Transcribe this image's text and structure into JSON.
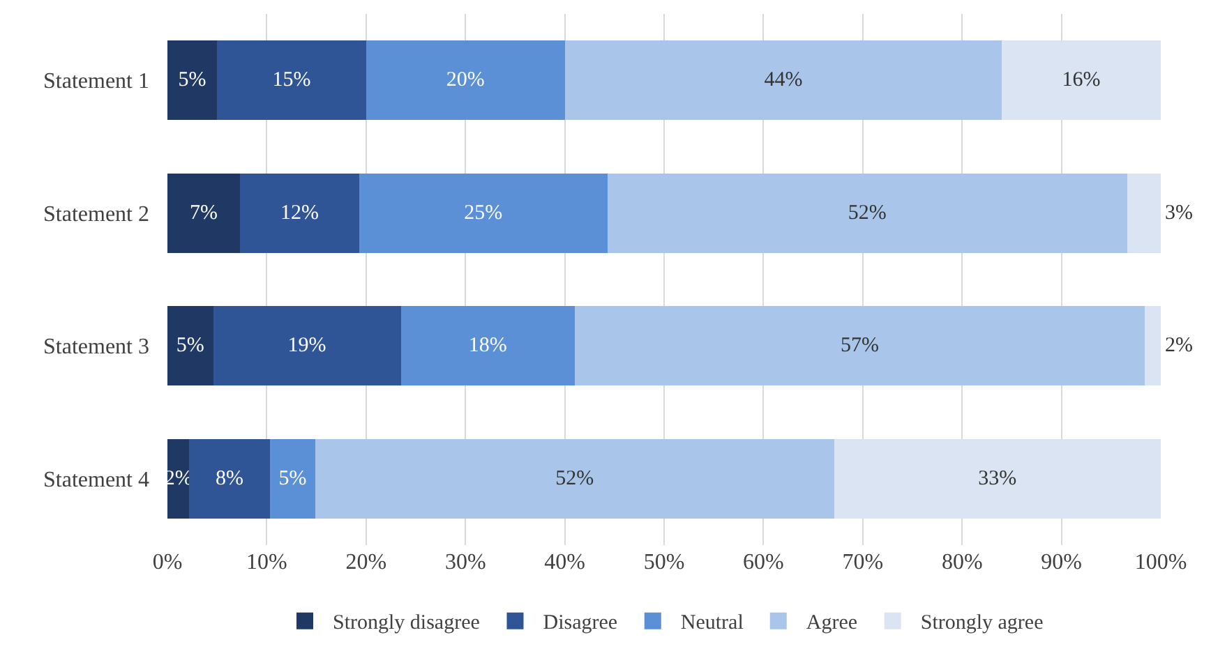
{
  "chart_data": {
    "type": "bar",
    "orientation": "horizontal",
    "stacked": true,
    "categories": [
      "Statement 1",
      "Statement 2",
      "Statement 3",
      "Statement 4"
    ],
    "series": [
      {
        "name": "Strongly disagree",
        "color": "#203864",
        "values": [
          5,
          7.3,
          4.6,
          2.2
        ],
        "value_labels": [
          "5%",
          "7%",
          "5%",
          "2%"
        ]
      },
      {
        "name": "Disagree",
        "color": "#2f5597",
        "values": [
          15,
          12,
          18.9,
          8.1
        ],
        "value_labels": [
          "15%",
          "12%",
          "19%",
          "8%"
        ]
      },
      {
        "name": "Neutral",
        "color": "#5b8fd6",
        "values": [
          20,
          25,
          17.5,
          4.6
        ],
        "value_labels": [
          "20%",
          "25%",
          "18%",
          "5%"
        ]
      },
      {
        "name": "Agree",
        "color": "#a9c6ea",
        "values": [
          44,
          52.3,
          57.4,
          52.2
        ],
        "value_labels": [
          "44%",
          "52%",
          "57%",
          "52%"
        ]
      },
      {
        "name": "Strongly agree",
        "color": "#dae4f3",
        "values": [
          16,
          3.4,
          1.6,
          32.9
        ],
        "value_labels": [
          "16%",
          "3%",
          "2%",
          "33%"
        ]
      }
    ],
    "xlim": [
      0,
      100
    ],
    "xticks": [
      {
        "value": 0,
        "label": "0%"
      },
      {
        "value": 10,
        "label": "10%"
      },
      {
        "value": 20,
        "label": "20%"
      },
      {
        "value": 30,
        "label": "30%"
      },
      {
        "value": 40,
        "label": "40%"
      },
      {
        "value": 50,
        "label": "50%"
      },
      {
        "value": 60,
        "label": "60%"
      },
      {
        "value": 70,
        "label": "70%"
      },
      {
        "value": 80,
        "label": "80%"
      },
      {
        "value": 90,
        "label": "90%"
      },
      {
        "value": 100,
        "label": "100%"
      }
    ],
    "grid": "x",
    "legend": "bottom"
  }
}
